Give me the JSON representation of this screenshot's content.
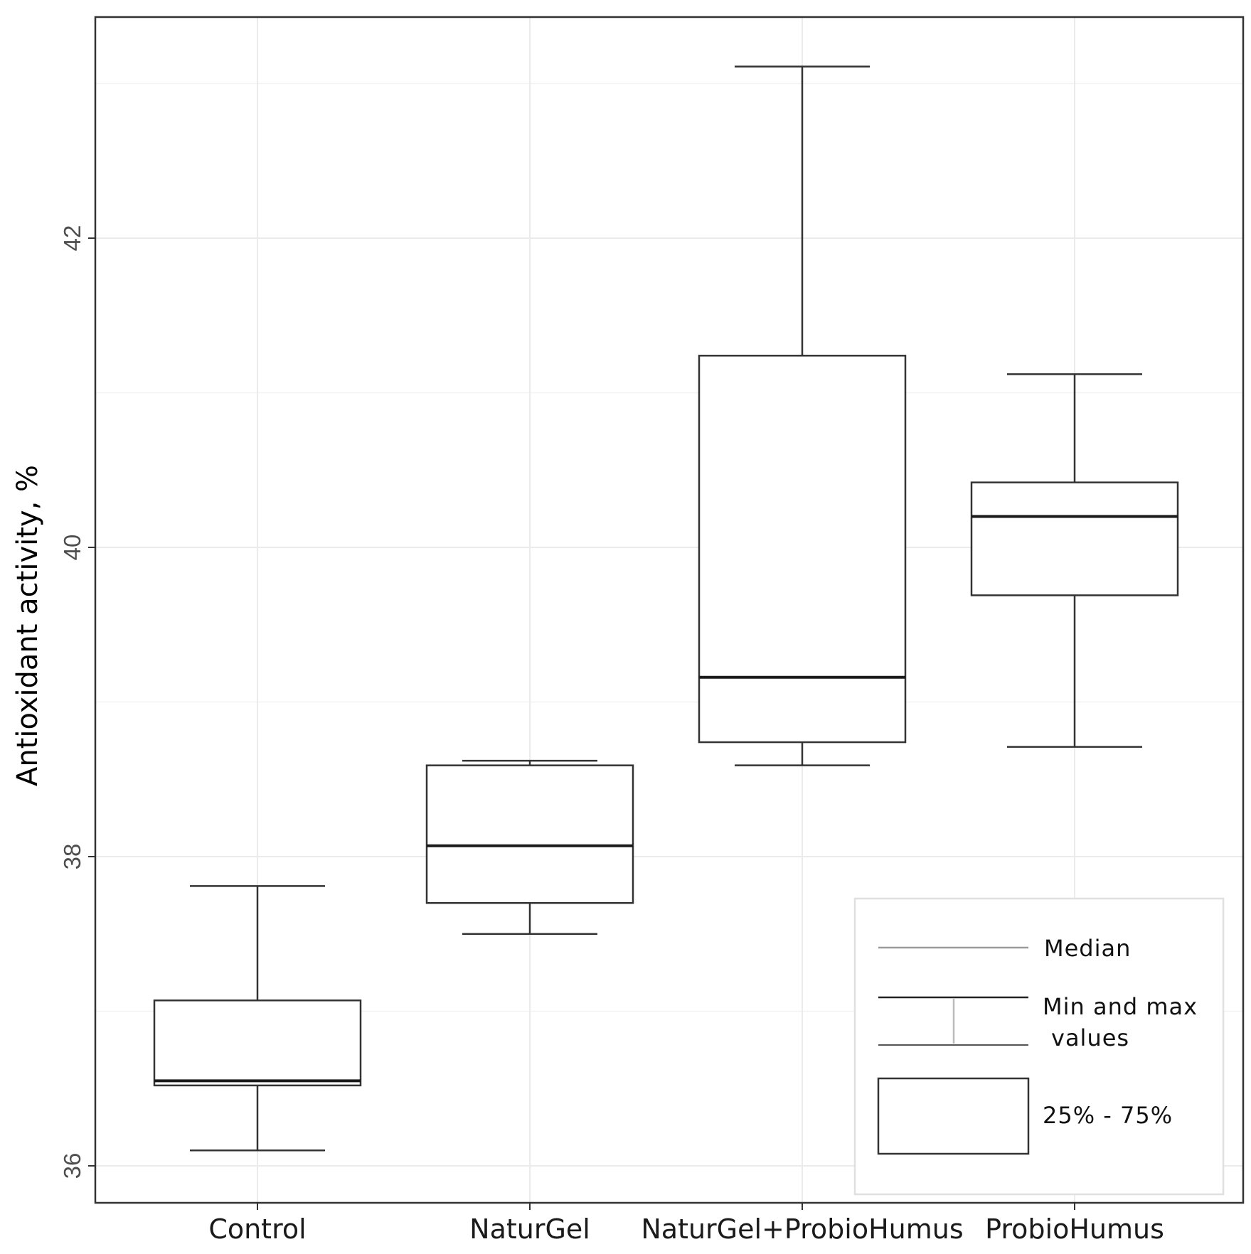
{
  "chart_data": {
    "type": "boxplot",
    "title": "",
    "xlabel": "",
    "ylabel": "Antioxidant activity, %",
    "ylim": [
      35.75,
      43.4
    ],
    "yticks": [
      36,
      38,
      40,
      42
    ],
    "ytick_labels": [
      "36",
      "38",
      "40",
      "42"
    ],
    "grid": true,
    "categories": [
      "Control",
      "NaturGel",
      "NaturGel+ProbioHumus",
      "ProbioHumus"
    ],
    "boxes": [
      {
        "name": "Control",
        "min": 36.1,
        "q1": 36.52,
        "median": 36.55,
        "q3": 37.07,
        "max": 37.81
      },
      {
        "name": "NaturGel",
        "min": 37.5,
        "q1": 37.7,
        "median": 38.07,
        "q3": 38.59,
        "max": 38.62
      },
      {
        "name": "NaturGel+ProbioHumus",
        "min": 38.59,
        "q1": 38.74,
        "median": 39.16,
        "q3": 41.24,
        "max": 43.11
      },
      {
        "name": "ProbioHumus",
        "min": 38.71,
        "q1": 39.69,
        "median": 40.2,
        "q3": 40.42,
        "max": 41.12
      }
    ],
    "legend": {
      "position": "bottom-right",
      "items": [
        {
          "key": "median",
          "label": "Median"
        },
        {
          "key": "minmax",
          "label_line1": "Min and max",
          "label_line2": "values"
        },
        {
          "key": "iqr",
          "label": "25% - 75%"
        }
      ]
    }
  }
}
